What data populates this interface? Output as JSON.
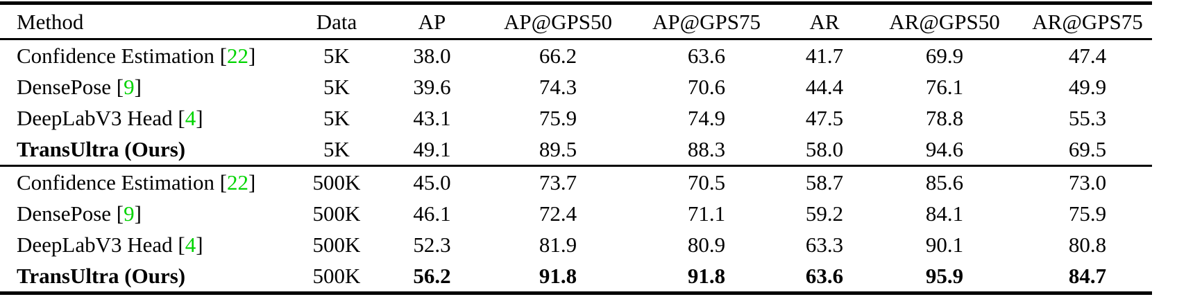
{
  "colors": {
    "citation_link": "#00D400",
    "rule": "#000000",
    "text": "#000000",
    "background": "#ffffff"
  },
  "table": {
    "columns": [
      "Method",
      "Data",
      "AP",
      "AP@GPS50",
      "AP@GPS75",
      "AR",
      "AR@GPS50",
      "AR@GPS75"
    ],
    "sections": [
      {
        "rows": [
          {
            "method": "Confidence Estimation",
            "cite": "22",
            "bold_method": false,
            "bold_values": false,
            "values": [
              "5K",
              "38.0",
              "66.2",
              "63.6",
              "41.7",
              "69.9",
              "47.4"
            ]
          },
          {
            "method": "DensePose",
            "cite": "9",
            "bold_method": false,
            "bold_values": false,
            "values": [
              "5K",
              "39.6",
              "74.3",
              "70.6",
              "44.4",
              "76.1",
              "49.9"
            ]
          },
          {
            "method": "DeepLabV3 Head",
            "cite": "4",
            "bold_method": false,
            "bold_values": false,
            "values": [
              "5K",
              "43.1",
              "75.9",
              "74.9",
              "47.5",
              "78.8",
              "55.3"
            ]
          },
          {
            "method": "TransUltra (Ours)",
            "cite": null,
            "bold_method": true,
            "bold_values": false,
            "values": [
              "5K",
              "49.1",
              "89.5",
              "88.3",
              "58.0",
              "94.6",
              "69.5"
            ]
          }
        ]
      },
      {
        "rows": [
          {
            "method": "Confidence Estimation",
            "cite": "22",
            "bold_method": false,
            "bold_values": false,
            "values": [
              "500K",
              "45.0",
              "73.7",
              "70.5",
              "58.7",
              "85.6",
              "73.0"
            ]
          },
          {
            "method": "DensePose",
            "cite": "9",
            "bold_method": false,
            "bold_values": false,
            "values": [
              "500K",
              "46.1",
              "72.4",
              "71.1",
              "59.2",
              "84.1",
              "75.9"
            ]
          },
          {
            "method": "DeepLabV3 Head",
            "cite": "4",
            "bold_method": false,
            "bold_values": false,
            "values": [
              "500K",
              "52.3",
              "81.9",
              "80.9",
              "63.3",
              "90.1",
              "80.8"
            ]
          },
          {
            "method": "TransUltra (Ours)",
            "cite": null,
            "bold_method": true,
            "bold_values": true,
            "values": [
              "500K",
              "56.2",
              "91.8",
              "91.8",
              "63.6",
              "95.9",
              "84.7"
            ]
          }
        ]
      }
    ]
  }
}
